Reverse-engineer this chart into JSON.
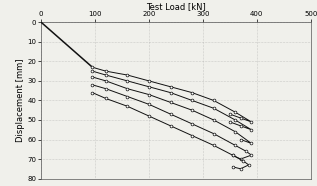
{
  "title": "Test Load [kN]",
  "xlabel": "Test Load [kN]",
  "ylabel": "Displacement [mm]",
  "xlim": [
    0,
    500
  ],
  "ylim": [
    80,
    0
  ],
  "xticks": [
    0,
    100,
    200,
    300,
    400,
    500
  ],
  "yticks": [
    0,
    10,
    20,
    30,
    40,
    50,
    60,
    70,
    80
  ],
  "bg_color": "#f0f0eb",
  "line_color": "#111111",
  "marker_color": "white",
  "marker_edge": "#111111",
  "series": [
    {
      "x": [
        0,
        95
      ],
      "y": [
        0,
        23
      ],
      "has_marker": false,
      "lw": 1.1
    },
    {
      "x": [
        95,
        120,
        160,
        200,
        240,
        280,
        320,
        360,
        390,
        370,
        350
      ],
      "y": [
        23,
        25,
        27,
        30,
        33,
        36,
        40,
        46,
        51,
        49,
        47
      ],
      "has_marker": true,
      "lw": 0.7
    },
    {
      "x": [
        95,
        120,
        160,
        200,
        240,
        280,
        320,
        360,
        390,
        370,
        350
      ],
      "y": [
        25,
        27,
        30,
        33,
        36,
        40,
        44,
        50,
        55,
        53,
        51
      ],
      "has_marker": true,
      "lw": 0.7
    },
    {
      "x": [
        95,
        120,
        160,
        200,
        240,
        280,
        320,
        360,
        390,
        370
      ],
      "y": [
        28,
        30,
        34,
        37,
        41,
        45,
        50,
        56,
        62,
        60
      ],
      "has_marker": true,
      "lw": 0.7
    },
    {
      "x": [
        95,
        120,
        160,
        200,
        240,
        280,
        320,
        360,
        380,
        390,
        370,
        355
      ],
      "y": [
        32,
        34,
        38,
        42,
        47,
        52,
        57,
        63,
        66,
        68,
        70,
        68
      ],
      "has_marker": true,
      "lw": 0.7
    },
    {
      "x": [
        95,
        120,
        160,
        200,
        240,
        280,
        320,
        355,
        375,
        385,
        370,
        355
      ],
      "y": [
        36,
        39,
        43,
        48,
        53,
        58,
        63,
        68,
        71,
        73,
        75,
        74
      ],
      "has_marker": true,
      "lw": 0.7
    }
  ]
}
